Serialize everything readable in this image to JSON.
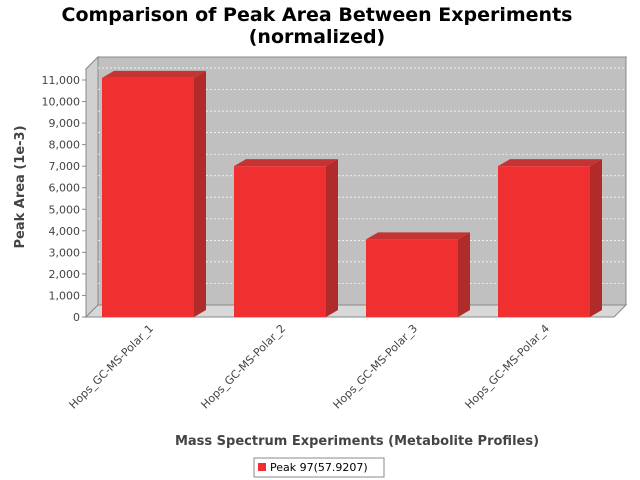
{
  "chart_data": {
    "type": "bar",
    "title": "Comparison of Peak Area Between Experiments",
    "subtitle": "(normalized)",
    "xlabel": "Mass Spectrum Experiments (Metabolite Profiles)",
    "ylabel": "Peak Area (1e-3)",
    "categories": [
      "Hops_GC-MS-Polar_1",
      "Hops_GC-MS-Polar_2",
      "Hops_GC-MS-Polar_3",
      "Hops_GC-MS-Polar_4"
    ],
    "series": [
      {
        "name": "Peak 97(57.9207)",
        "values": [
          11100,
          7000,
          3600,
          7000
        ],
        "color": "#f03030"
      }
    ],
    "ylim": [
      0,
      11000
    ],
    "yticks": [
      0,
      1000,
      2000,
      3000,
      4000,
      5000,
      6000,
      7000,
      8000,
      9000,
      10000,
      11000
    ],
    "ytick_labels": [
      "0",
      "1,000",
      "2,000",
      "3,000",
      "4,000",
      "5,000",
      "6,000",
      "7,000",
      "8,000",
      "9,000",
      "10,000",
      "11,000"
    ],
    "grid": true,
    "legend_position": "bottom-center",
    "plot_background": "#c0c0c0",
    "bar_3d": true
  }
}
